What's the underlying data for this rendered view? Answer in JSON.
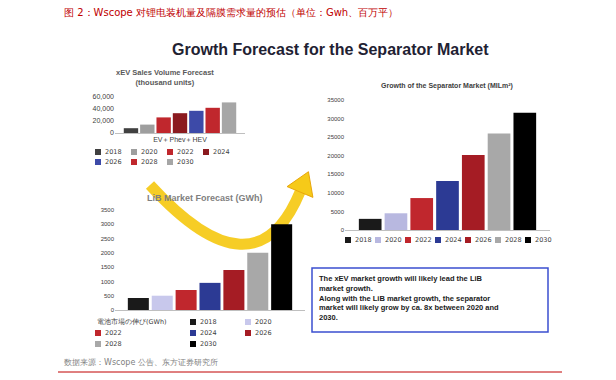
{
  "caption": "图 2：Wscope 对锂电装机量及隔膜需求量的预估（单位：Gwh、百万平）",
  "slide_title": "Growth Forecast for the Separator Market",
  "chart_data": [
    {
      "type": "bar",
      "title": "xEV Sales Volume Forecast",
      "subtitle": "(thousand units)",
      "categories": [
        "EV＋Phev＋HEV"
      ],
      "series": [
        {
          "name": "2018",
          "color": "#404040",
          "values": [
            8000
          ]
        },
        {
          "name": "2020",
          "color": "#9e9e9e",
          "values": [
            14000
          ]
        },
        {
          "name": "2022",
          "color": "#c0272d",
          "values": [
            26000
          ]
        },
        {
          "name": "2024",
          "color": "#8b1a1f",
          "values": [
            33000
          ]
        },
        {
          "name": "2026",
          "color": "#3d4aa8",
          "values": [
            37000
          ]
        },
        {
          "name": "2028",
          "color": "#c0272d",
          "values": [
            42000
          ]
        },
        {
          "name": "2030",
          "color": "#a6a6a6",
          "values": [
            51000
          ]
        }
      ],
      "ylim": [
        0,
        60000
      ],
      "yticks": [
        0,
        {
          "value": 20000,
          "label": "20,000"
        },
        {
          "value": 40000,
          "label": "40,000"
        },
        {
          "value": 60000,
          "label": "60,000"
        }
      ],
      "grid": false,
      "legend": "bottom",
      "tick_labels": true
    },
    {
      "type": "bar",
      "title": "Growth of the Separator Market (MILm²)",
      "categories": [
        null
      ],
      "series": [
        {
          "name": "2018",
          "color": "#1a1a1a",
          "values": [
            3000
          ]
        },
        {
          "name": "2020",
          "color": "#b8b8e0",
          "values": [
            4500
          ]
        },
        {
          "name": "2022",
          "color": "#c0272d",
          "values": [
            8600
          ]
        },
        {
          "name": "2024",
          "color": "#2c3a94",
          "values": [
            13200
          ]
        },
        {
          "name": "2026",
          "color": "#a51c24",
          "values": [
            20200
          ]
        },
        {
          "name": "2028",
          "color": "#a8a8a8",
          "values": [
            26000
          ]
        },
        {
          "name": "2030",
          "color": "#000000",
          "values": [
            31600
          ]
        }
      ],
      "ylim": [
        0,
        35000
      ],
      "yticks": [
        0,
        5000,
        10000,
        15000,
        20000,
        25000,
        30000,
        35000
      ],
      "grid": false,
      "legend": "bottom",
      "tick_labels": "y"
    },
    {
      "type": "bar",
      "title": "LiB Market Forecast (GWh)",
      "legend_title": "電池市場の伸び(GWh)",
      "categories": [
        null
      ],
      "series": [
        {
          "name": "2018",
          "color": "#1a1a1a",
          "values": [
            420
          ]
        },
        {
          "name": "2020",
          "color": "#c8c8ec",
          "values": [
            500
          ]
        },
        {
          "name": "2022",
          "color": "#c0272d",
          "values": [
            700
          ]
        },
        {
          "name": "2024",
          "color": "#2c3a94",
          "values": [
            950
          ]
        },
        {
          "name": "2026",
          "color": "#a51c24",
          "values": [
            1400
          ]
        },
        {
          "name": "2028",
          "color": "#a8a8a8",
          "values": [
            2000
          ]
        },
        {
          "name": "2030",
          "color": "#000000",
          "values": [
            3000
          ]
        }
      ],
      "ylim": [
        0,
        3500
      ],
      "yticks": [
        0,
        500,
        1000,
        1500,
        2000,
        2500,
        3000,
        3500
      ],
      "grid": false,
      "legend": "bottom",
      "tick_labels": "y"
    }
  ],
  "textbox": [
    "The xEV market growth will likely lead the LiB",
    "market growth.",
    "Along with the LiB market growth, the separator",
    "market will likely grow by ca. 8x between 2020 and",
    "2030."
  ],
  "source": "数据来源：Wscope 公告、东方证券研究所"
}
